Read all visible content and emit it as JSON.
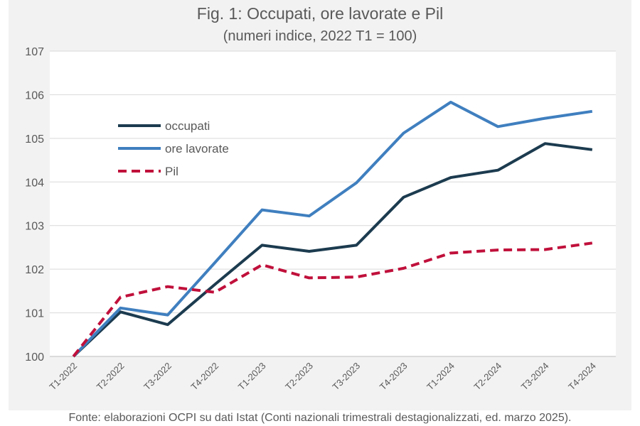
{
  "chart_data": {
    "type": "line",
    "title": "Fig. 1: Occupati, ore lavorate e Pil",
    "subtitle": "(numeri indice, 2022 T1 = 100)",
    "xlabel": "",
    "ylabel": "",
    "ylim": [
      100,
      107
    ],
    "yticks": [
      100,
      101,
      102,
      103,
      104,
      105,
      106,
      107
    ],
    "grid": true,
    "legend_position": "upper-left",
    "categories": [
      "T1-2022",
      "T2-2022",
      "T3-2022",
      "T4-2022",
      "T1-2023",
      "T2-2023",
      "T3-2023",
      "T4-2023",
      "T1-2024",
      "T2-2024",
      "T3-2024",
      "T4-2024"
    ],
    "series": [
      {
        "name": "occupati",
        "color": "#1c3b4f",
        "style": "solid",
        "values": [
          100.0,
          101.02,
          100.73,
          101.65,
          102.55,
          102.41,
          102.55,
          103.65,
          104.1,
          104.27,
          104.88,
          104.74
        ]
      },
      {
        "name": "ore lavorate",
        "color": "#3f7fbf",
        "style": "solid",
        "values": [
          100.0,
          101.11,
          100.95,
          102.15,
          103.36,
          103.22,
          103.98,
          105.12,
          105.83,
          105.27,
          105.46,
          105.62
        ]
      },
      {
        "name": "Pil",
        "color": "#c0103b",
        "style": "dashed",
        "values": [
          100.0,
          101.36,
          101.6,
          101.47,
          102.1,
          101.8,
          101.82,
          102.02,
          102.37,
          102.44,
          102.45,
          102.6
        ]
      }
    ]
  },
  "source": "Fonte: elaborazioni OCPI su dati Istat (Conti nazionali trimestrali destagionalizzati, ed. marzo 2025)."
}
